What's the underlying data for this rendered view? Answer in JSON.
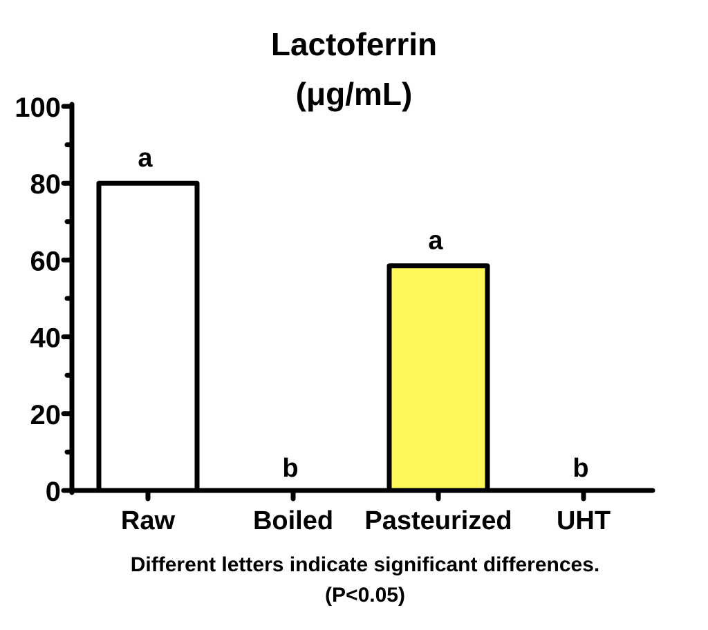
{
  "chart_data": {
    "type": "bar",
    "title": "Lactoferrin",
    "subtitle": "(μg/mL)",
    "categories": [
      "Raw",
      "Boiled",
      "Pasteurized",
      "UHT"
    ],
    "values": [
      80,
      0,
      58.5,
      0
    ],
    "significance_letters": [
      "a",
      "b",
      "a",
      "b"
    ],
    "bar_colors": [
      "#ffffff",
      "#ffffff",
      "#fff85a",
      "#ffffff"
    ],
    "ylim": [
      0,
      100
    ],
    "yticks": [
      0,
      20,
      40,
      60,
      80,
      100
    ],
    "yminor_step": 10,
    "grid": false,
    "legend": "none",
    "xlabel": "",
    "ylabel": "",
    "footnote_line1": "Different letters indicate significant differences.",
    "footnote_line2": "(P<0.05)"
  }
}
